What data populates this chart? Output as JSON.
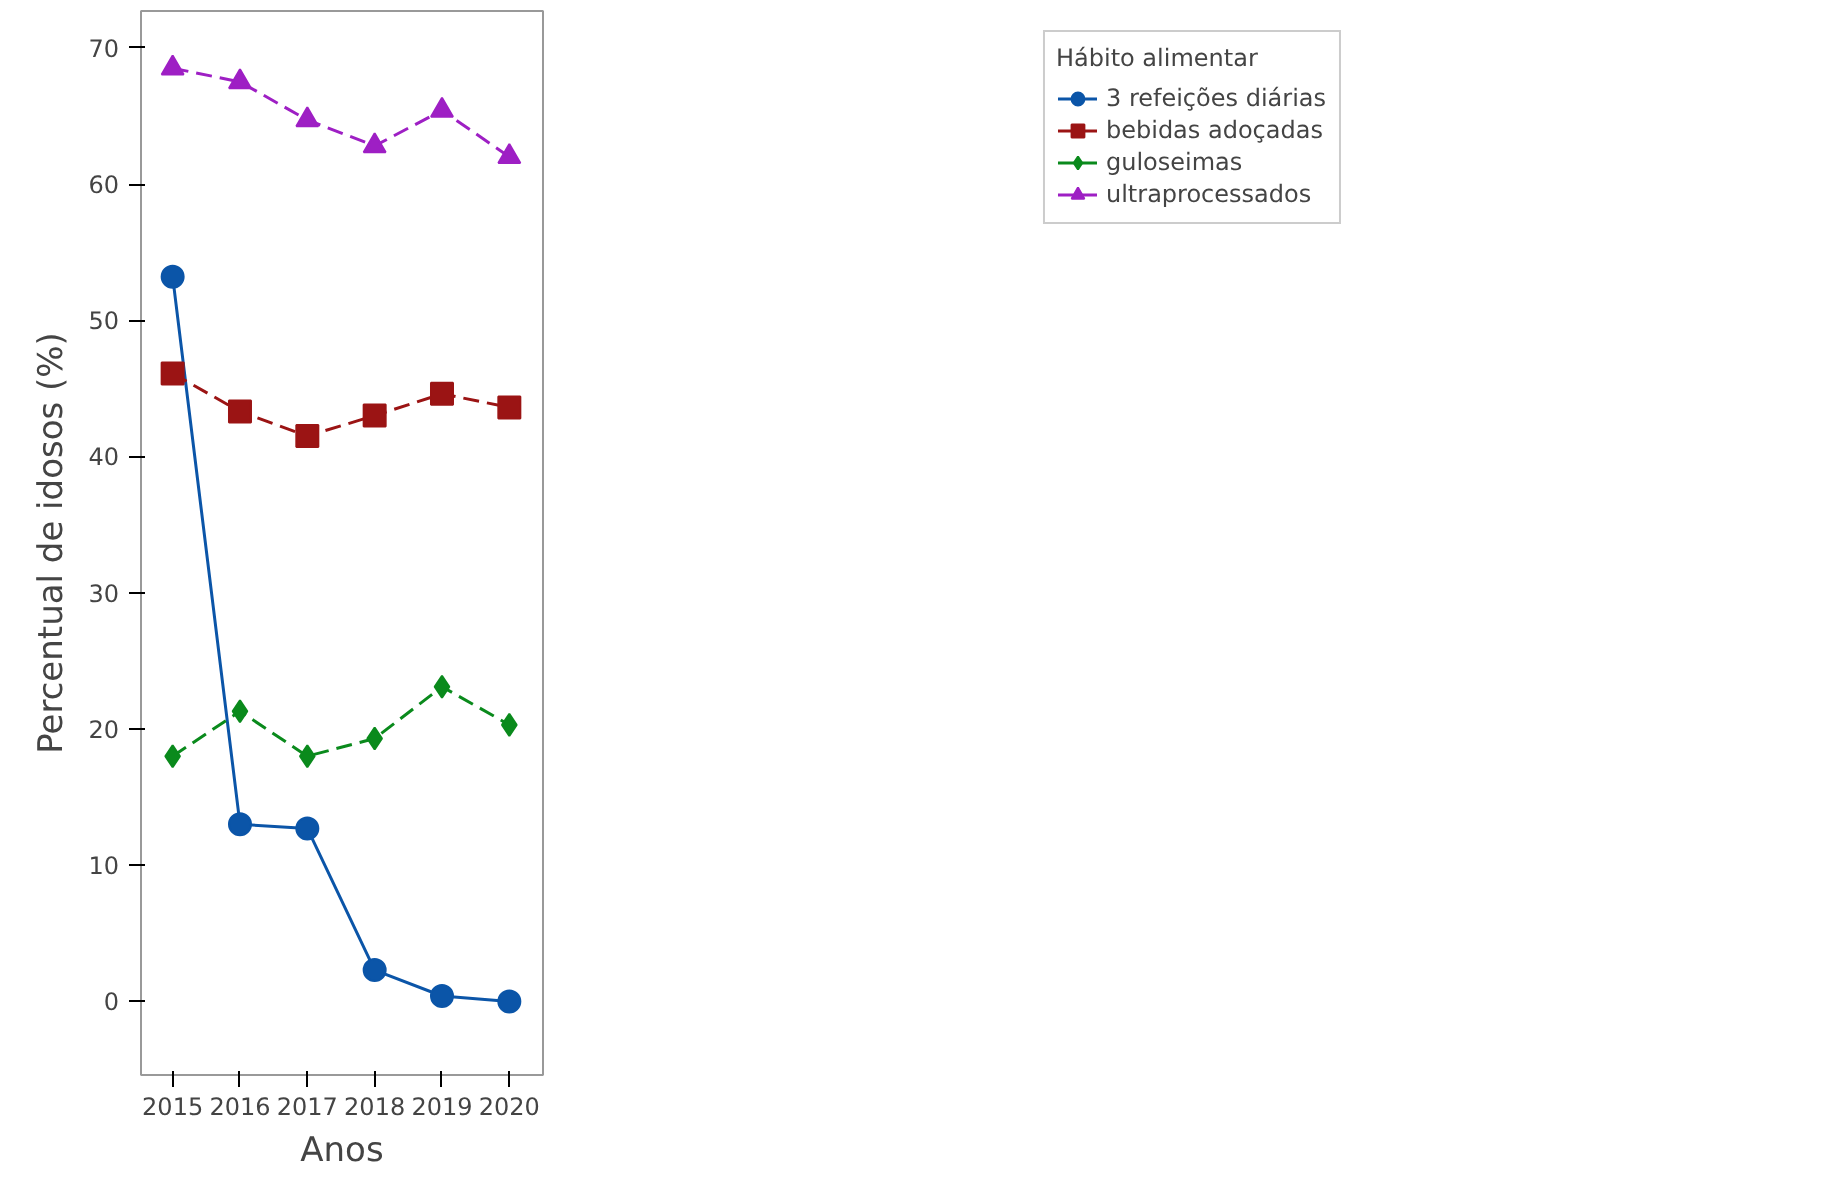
{
  "chart_data": {
    "type": "line",
    "xlabel": "Anos",
    "ylabel": "Percentual de idosos (%)",
    "legend_title": "Hábito alimentar",
    "legend": "top right",
    "grid": false,
    "x": [
      2015,
      2016,
      2017,
      2018,
      2019,
      2020
    ],
    "xlim": [
      2014.53,
      2020.5
    ],
    "xticks": [
      2015,
      2016,
      2017,
      2018,
      2019,
      2020
    ],
    "ylim": [
      -5.4,
      72.7
    ],
    "yticks": [
      0,
      10,
      20,
      30,
      40,
      50,
      60,
      70
    ],
    "series": [
      {
        "name": "3 refeições diárias",
        "color": "#0b55a8",
        "marker": "circle",
        "line_style": "solid",
        "values": [
          53.2,
          13.0,
          12.7,
          2.3,
          0.4,
          0.0
        ]
      },
      {
        "name": "bebidas adoçadas",
        "color": "#9b1414",
        "marker": "square",
        "line_style": "dashed",
        "values": [
          46.1,
          43.3,
          41.5,
          43.0,
          44.6,
          43.6
        ]
      },
      {
        "name": "guloseimas",
        "color": "#0a8a1c",
        "marker": "diamond",
        "line_style": "dashed",
        "values": [
          18.0,
          21.3,
          18.0,
          19.3,
          23.1,
          20.3
        ]
      },
      {
        "name": "ultraprocessados",
        "color": "#9e1fc4",
        "marker": "triangle",
        "line_style": "dashed",
        "values": [
          68.5,
          67.5,
          64.7,
          62.8,
          65.4,
          62.0
        ]
      }
    ]
  }
}
